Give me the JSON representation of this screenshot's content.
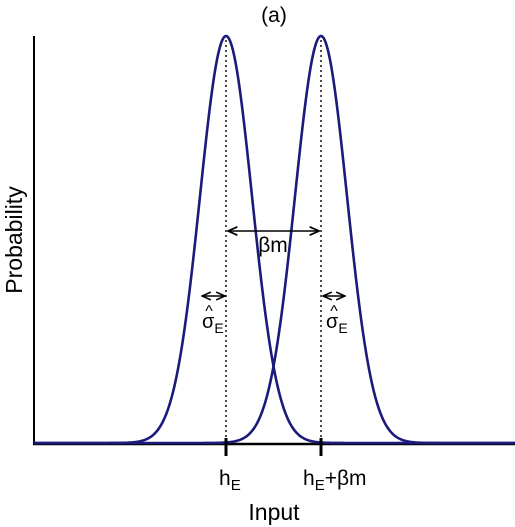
{
  "panel_label": "(a)",
  "y_axis_label": "Probability",
  "x_axis_label": "Input",
  "separation_label": "βm",
  "left_tick": {
    "base": "h",
    "subscript": "E",
    "suffix": ""
  },
  "right_tick": {
    "base": "h",
    "subscript": "E",
    "suffix": "+βm"
  },
  "left_width_label": {
    "hat": "^",
    "base": "σ",
    "subscript": "E"
  },
  "right_width_label": {
    "hat": "^",
    "base": "σ",
    "subscript": "E"
  },
  "colors": {
    "curve": "#1c1a7a",
    "axis": "#000000"
  }
}
